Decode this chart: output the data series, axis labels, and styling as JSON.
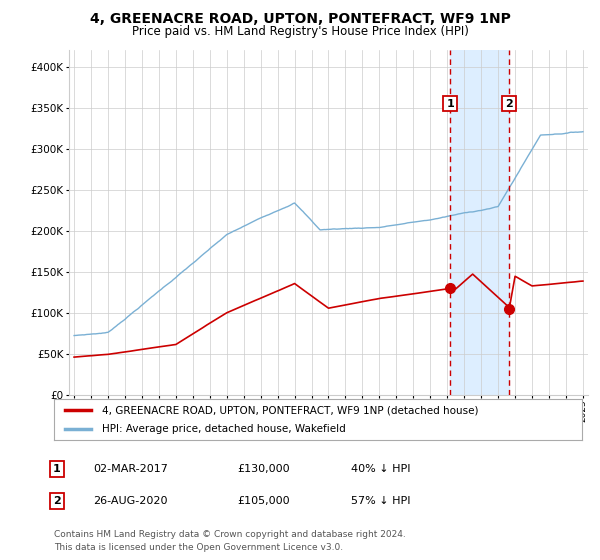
{
  "title1": "4, GREENACRE ROAD, UPTON, PONTEFRACT, WF9 1NP",
  "title2": "Price paid vs. HM Land Registry's House Price Index (HPI)",
  "legend_line1": "4, GREENACRE ROAD, UPTON, PONTEFRACT, WF9 1NP (detached house)",
  "legend_line2": "HPI: Average price, detached house, Wakefield",
  "point1_label": "1",
  "point1_date": "02-MAR-2017",
  "point1_price": "£130,000",
  "point1_hpi": "40% ↓ HPI",
  "point2_label": "2",
  "point2_date": "26-AUG-2020",
  "point2_price": "£105,000",
  "point2_hpi": "57% ↓ HPI",
  "footnote1": "Contains HM Land Registry data © Crown copyright and database right 2024.",
  "footnote2": "This data is licensed under the Open Government Licence v3.0.",
  "red_line_color": "#cc0000",
  "blue_line_color": "#7ab0d4",
  "highlight_color": "#ddeeff",
  "dashed_line_color": "#cc0000",
  "marker_color": "#cc0000",
  "background_color": "#ffffff",
  "grid_color": "#cccccc",
  "ylim": [
    0,
    420000
  ],
  "yticks": [
    0,
    50000,
    100000,
    150000,
    200000,
    250000,
    300000,
    350000,
    400000
  ],
  "ytick_labels": [
    "£0",
    "£50K",
    "£100K",
    "£150K",
    "£200K",
    "£250K",
    "£300K",
    "£350K",
    "£400K"
  ],
  "year_start": 1995,
  "year_end": 2025,
  "point1_year": 2017.17,
  "point1_value": 130000,
  "point2_year": 2020.65,
  "point2_value": 105000
}
